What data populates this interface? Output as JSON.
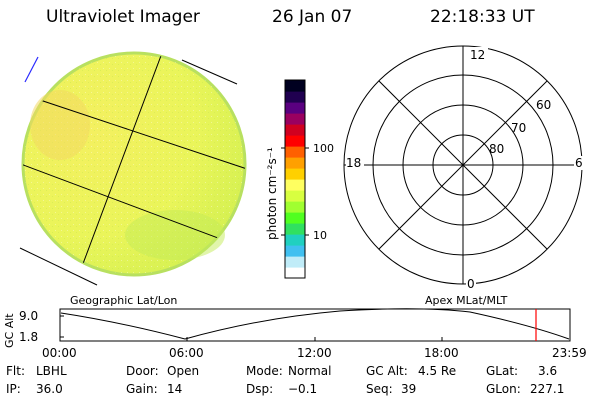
{
  "header": {
    "instrument": "Ultraviolet Imager",
    "date": "26 Jan 07",
    "time": "22:18:33 UT"
  },
  "colorbar": {
    "unit_label": "photon cm⁻²s⁻¹",
    "ticks": [
      "100",
      "10"
    ],
    "colors": [
      "#000020",
      "#200050",
      "#5a0080",
      "#9a0060",
      "#d00020",
      "#ff0000",
      "#ff6000",
      "#ffa000",
      "#ffd000",
      "#ffff60",
      "#d8ff40",
      "#a0ff30",
      "#50ff20",
      "#30e060",
      "#20d0c0",
      "#40c0f0",
      "#c0ecf8",
      "#ffffff"
    ]
  },
  "image_panel": {
    "caption": "Geographic Lat/Lon",
    "fill_color": "#eef55a"
  },
  "polar_panel": {
    "caption": "Apex MLat/MLT",
    "mlt_labels": [
      "12",
      "18",
      "6",
      "0"
    ],
    "mlat_labels": [
      "60",
      "70",
      "80"
    ]
  },
  "timeline": {
    "axis_label": "GC Alt",
    "y_ticks": [
      "9.0",
      "1.8"
    ],
    "x_ticks": [
      "00:00",
      "06:00",
      "12:00",
      "18:00",
      "23:59"
    ],
    "marker_color": "#ff0000",
    "marker_time": "22:18"
  },
  "status": {
    "flt_label": "Flt:",
    "flt_value": "LBHL",
    "ip_label": "IP:",
    "ip_value": "36.0",
    "door_label": "Door:",
    "door_value": "Open",
    "gain_label": "Gain:",
    "gain_value": "14",
    "mode_label": "Mode:",
    "mode_value": "Normal",
    "dsp_label": "Dsp:",
    "dsp_value": "−0.1",
    "gcalt_label": "GC Alt:",
    "gcalt_value": "4.5 Re",
    "seq_label": "Seq:",
    "seq_value": "39",
    "glat_label": "GLat:",
    "glat_value": "3.6",
    "glon_label": "GLon:",
    "glon_value": "227.1"
  }
}
